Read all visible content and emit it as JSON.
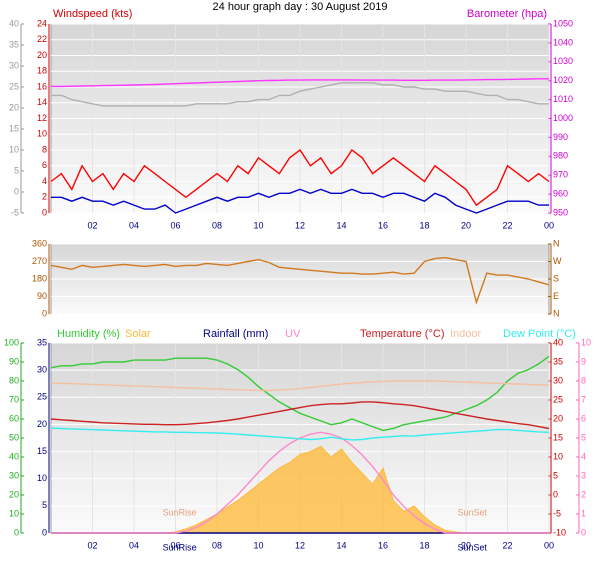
{
  "title": "24 hour graph day : 30 August 2019",
  "chart_data": [
    {
      "type": "line",
      "ylabel": "Windspeed (kts)",
      "y2label": "Barometer (hpa)",
      "grid": true,
      "axis_colors": {
        "y": "#cc0000",
        "y2": "#cc00cc",
        "y3": "#999999"
      },
      "x": [
        0,
        0.5,
        1,
        1.5,
        2,
        2.5,
        3,
        3.5,
        4,
        4.5,
        5,
        5.5,
        6,
        6.5,
        7,
        7.5,
        8,
        8.5,
        9,
        9.5,
        10,
        10.5,
        11,
        11.5,
        12,
        12.5,
        13,
        13.5,
        14,
        14.5,
        15,
        15.5,
        16,
        16.5,
        17,
        17.5,
        18,
        18.5,
        19,
        19.5,
        20,
        20.5,
        21,
        21.5,
        22,
        22.5,
        23,
        23.5,
        24
      ],
      "xlim": [
        0,
        24
      ],
      "xticks": [
        {
          "value": 2,
          "label": "02"
        },
        {
          "value": 4,
          "label": "04"
        },
        {
          "value": 6,
          "label": "06"
        },
        {
          "value": 8,
          "label": "08"
        },
        10,
        12,
        14,
        16,
        18,
        20,
        22,
        {
          "value": 24,
          "label": "00"
        }
      ],
      "ylim": [
        0,
        24
      ],
      "yticks": [
        0,
        2,
        4,
        6,
        8,
        10,
        12,
        14,
        16,
        18,
        20,
        22,
        24
      ],
      "y2lim": [
        950,
        1050
      ],
      "y2ticks": [
        950,
        960,
        970,
        980,
        990,
        1000,
        1010,
        1020,
        1030,
        1040,
        1050
      ],
      "y3lim": [
        -5,
        40
      ],
      "y3ticks": [
        -5,
        0,
        5,
        10,
        15,
        20,
        25,
        30,
        35,
        40
      ],
      "series": [
        {
          "color": "#b0b0b0",
          "axis": "y3",
          "values": [
            23,
            23,
            22,
            21.5,
            21,
            20.5,
            20.5,
            20.5,
            20.5,
            20.5,
            20.5,
            20.5,
            20.5,
            20.5,
            21,
            21,
            21,
            21,
            21.5,
            21.5,
            22,
            22,
            23,
            23,
            24,
            24.5,
            25,
            25.5,
            26,
            26,
            26,
            26,
            25.5,
            25.5,
            25,
            25,
            24.5,
            24.5,
            24,
            24,
            24,
            23.5,
            23,
            23,
            22,
            22,
            21.5,
            21,
            21
          ]
        },
        {
          "name": "Barometer (hpa)",
          "color": "#ff33ff",
          "axis": "y2",
          "values": [
            1017,
            1017,
            1017.1,
            1017.2,
            1017.3,
            1017.4,
            1017.5,
            1017.6,
            1017.7,
            1017.9,
            1018,
            1018.2,
            1018.4,
            1018.6,
            1018.8,
            1019,
            1019.2,
            1019.4,
            1019.6,
            1019.8,
            1020,
            1020.1,
            1020.2,
            1020.3,
            1020.3,
            1020.4,
            1020.4,
            1020.4,
            1020.4,
            1020.4,
            1020.3,
            1020.3,
            1020.3,
            1020.3,
            1020.2,
            1020.2,
            1020.2,
            1020.3,
            1020.3,
            1020.3,
            1020.4,
            1020.5,
            1020.6,
            1020.6,
            1020.7,
            1020.8,
            1020.9,
            1021,
            1021
          ]
        },
        {
          "name": "Windspeed (kts)",
          "color": "#ff0000",
          "values": [
            4,
            5,
            3,
            6,
            4,
            5,
            3,
            5,
            4,
            6,
            5,
            4,
            3,
            2,
            3,
            4,
            5,
            4,
            6,
            5,
            7,
            6,
            5,
            7,
            8,
            6,
            7,
            5,
            6,
            8,
            7,
            5,
            6,
            7,
            6,
            5,
            4,
            6,
            5,
            4,
            3,
            1,
            2,
            3,
            6,
            5,
            4,
            5,
            4
          ]
        },
        {
          "color": "#0000cc",
          "values": [
            2,
            2,
            1.5,
            2,
            1.5,
            1.5,
            1,
            1.5,
            1,
            0.5,
            0.5,
            1,
            0,
            0.5,
            1,
            1.5,
            2,
            1.5,
            2,
            2,
            2.5,
            2,
            2.5,
            2.5,
            3,
            2.5,
            3,
            2.5,
            2.5,
            3,
            2.5,
            2.5,
            2,
            2.5,
            2.5,
            2,
            1.5,
            2.5,
            2,
            1,
            0.5,
            0,
            0.5,
            1,
            1.5,
            1.5,
            1.5,
            1,
            1
          ]
        }
      ]
    },
    {
      "type": "line",
      "grid": true,
      "axis_colors": {
        "y": "#aa5500",
        "y2": "#aa5500"
      },
      "x": [
        0,
        0.5,
        1,
        1.5,
        2,
        2.5,
        3,
        3.5,
        4,
        4.5,
        5,
        5.5,
        6,
        6.5,
        7,
        7.5,
        8,
        8.5,
        9,
        9.5,
        10,
        10.5,
        11,
        11.5,
        12,
        12.5,
        13,
        13.5,
        14,
        14.5,
        15,
        15.5,
        16,
        16.5,
        17,
        17.5,
        18,
        18.5,
        19,
        19.5,
        20,
        20.5,
        21,
        21.5,
        22,
        22.5,
        23,
        23.5,
        24
      ],
      "xlim": [
        0,
        24
      ],
      "ylim": [
        0,
        360
      ],
      "yticks": [
        0,
        90,
        180,
        270,
        360
      ],
      "y2lim": [
        0,
        360
      ],
      "y2ticks": [
        {
          "value": 0,
          "label": "N"
        },
        {
          "value": 90,
          "label": "E"
        },
        {
          "value": 180,
          "label": "S"
        },
        {
          "value": 270,
          "label": "W"
        },
        {
          "value": 360,
          "label": "N"
        }
      ],
      "series": [
        {
          "color": "#d2781e",
          "values": [
            250,
            240,
            230,
            250,
            240,
            245,
            250,
            255,
            250,
            245,
            250,
            255,
            245,
            250,
            250,
            260,
            255,
            250,
            260,
            270,
            280,
            265,
            240,
            235,
            230,
            225,
            220,
            215,
            210,
            210,
            205,
            205,
            210,
            215,
            205,
            210,
            270,
            285,
            290,
            280,
            270,
            60,
            210,
            200,
            200,
            190,
            180,
            165,
            150
          ]
        }
      ]
    },
    {
      "type": "line",
      "grid": true,
      "axis_colors": {
        "y": "#000080",
        "y2": "#cc0000",
        "y3": "#22aa22",
        "y4": "#ff66bb"
      },
      "x": [
        0,
        0.5,
        1,
        1.5,
        2,
        2.5,
        3,
        3.5,
        4,
        4.5,
        5,
        5.5,
        6,
        6.5,
        7,
        7.5,
        8,
        8.5,
        9,
        9.5,
        10,
        10.5,
        11,
        11.5,
        12,
        12.5,
        13,
        13.5,
        14,
        14.5,
        15,
        15.5,
        16,
        16.5,
        17,
        17.5,
        18,
        18.5,
        19,
        19.5,
        20,
        20.5,
        21,
        21.5,
        22,
        22.5,
        23,
        23.5,
        24
      ],
      "xlim": [
        0,
        24
      ],
      "xticks": [
        {
          "value": 2,
          "label": "02"
        },
        {
          "value": 4,
          "label": "04"
        },
        {
          "value": 6,
          "label": "06"
        },
        {
          "value": 8,
          "label": "08"
        },
        10,
        12,
        14,
        16,
        18,
        20,
        22,
        {
          "value": 24,
          "label": "00"
        }
      ],
      "ylim": [
        0,
        35
      ],
      "yticks": [
        0,
        5,
        10,
        15,
        20,
        25,
        30,
        35
      ],
      "y2lim": [
        -10,
        40
      ],
      "y2ticks": [
        -10,
        -5,
        0,
        5,
        10,
        15,
        20,
        25,
        30,
        35,
        40
      ],
      "y3lim": [
        0,
        100
      ],
      "y3ticks": [
        0,
        10,
        20,
        30,
        40,
        50,
        60,
        70,
        80,
        90,
        100
      ],
      "y4lim": [
        0,
        10
      ],
      "y4ticks": [
        0,
        1,
        2,
        3,
        4,
        5,
        6,
        7,
        8,
        9,
        10
      ],
      "annotations": [
        {
          "text": "SunRise",
          "x": 6.2
        },
        {
          "text": "SunSet",
          "x": 20.3
        }
      ],
      "series": [
        {
          "name": "Humidity (%)",
          "color": "#33cc33",
          "axis": "y3",
          "values": [
            87,
            88,
            88,
            89,
            89,
            90,
            90,
            90,
            91,
            91,
            91,
            91,
            92,
            92,
            92,
            92,
            91,
            89,
            86,
            82,
            77,
            73,
            69,
            66,
            63,
            61,
            59,
            57,
            58,
            60,
            58,
            56,
            54,
            55,
            57,
            58,
            59,
            60,
            61,
            63,
            65,
            67,
            70,
            74,
            80,
            84,
            86,
            89,
            93
          ]
        },
        {
          "name": "Solar",
          "color": "#ffb733",
          "fill": true,
          "values": [
            0,
            0,
            0,
            0,
            0,
            0,
            0,
            0,
            0,
            0,
            0,
            0,
            0.2,
            0.8,
            1.5,
            2.5,
            3.5,
            4.8,
            6,
            7.5,
            9,
            10.5,
            12,
            13,
            14.5,
            15,
            16,
            14,
            15.5,
            13,
            11,
            9,
            12,
            6,
            4,
            5,
            3,
            1.5,
            0.5,
            0.2,
            0,
            0,
            0,
            0,
            0,
            0,
            0,
            0,
            0
          ]
        },
        {
          "name": "Rainfall (mm)",
          "color": "#000080",
          "values": [
            0,
            0,
            0,
            0,
            0,
            0,
            0,
            0,
            0,
            0,
            0,
            0,
            0,
            0,
            0,
            0,
            0,
            0,
            0,
            0,
            0,
            0,
            0,
            0,
            0,
            0,
            0,
            0,
            0,
            0,
            0,
            0,
            0,
            0,
            0,
            0,
            0,
            0,
            0,
            0,
            0,
            0,
            0,
            0,
            0,
            0,
            0,
            0,
            0
          ]
        },
        {
          "name": "UV",
          "color": "#ff88cc",
          "axis": "y4",
          "values": [
            0,
            0,
            0,
            0,
            0,
            0,
            0,
            0,
            0,
            0,
            0,
            0,
            0,
            0.1,
            0.3,
            0.6,
            1,
            1.5,
            2,
            2.6,
            3.2,
            3.8,
            4.3,
            4.7,
            5,
            5.2,
            5.3,
            5.2,
            5,
            4.6,
            4.1,
            3.5,
            2.8,
            2,
            1.4,
            0.9,
            0.5,
            0.2,
            0,
            0,
            0,
            0,
            0,
            0,
            0,
            0,
            0,
            0,
            0
          ]
        },
        {
          "name": "Temperature (°C)",
          "color": "#cc2222",
          "axis": "y2",
          "values": [
            20,
            19.8,
            19.6,
            19.4,
            19.2,
            19,
            18.9,
            18.8,
            18.7,
            18.6,
            18.6,
            18.5,
            18.5,
            18.6,
            18.8,
            19,
            19.3,
            19.6,
            20,
            20.5,
            21,
            21.5,
            22,
            22.5,
            23,
            23.5,
            23.8,
            24,
            24,
            24.2,
            24.5,
            24.5,
            24.3,
            24,
            23.8,
            23.5,
            23,
            22.5,
            22,
            21.5,
            21,
            20.5,
            20,
            19.6,
            19.2,
            18.8,
            18.5,
            18,
            17.5
          ]
        },
        {
          "name": "Indoor",
          "color": "#f5bfa0",
          "axis": "y2",
          "values": [
            29.5,
            29.4,
            29.3,
            29.2,
            29.1,
            29,
            28.9,
            28.8,
            28.7,
            28.6,
            28.5,
            28.4,
            28.3,
            28.2,
            28.1,
            28,
            27.9,
            27.8,
            27.7,
            27.6,
            27.5,
            27.5,
            27.6,
            27.8,
            28,
            28.3,
            28.6,
            28.9,
            29.2,
            29.4,
            29.6,
            29.8,
            29.9,
            30,
            30,
            30,
            30,
            30,
            29.9,
            29.8,
            29.7,
            29.6,
            29.5,
            29.4,
            29.3,
            29.2,
            29.1,
            29,
            28.9
          ]
        },
        {
          "name": "Dew Point (°C)",
          "color": "#33eeee",
          "axis": "y2",
          "values": [
            17.6,
            17.5,
            17.4,
            17.3,
            17.2,
            17.1,
            17,
            16.9,
            16.8,
            16.7,
            16.6,
            16.6,
            16.5,
            16.5,
            16.4,
            16.4,
            16.3,
            16.2,
            16,
            15.8,
            15.6,
            15.4,
            15.2,
            15,
            14.8,
            14.6,
            14.8,
            15.2,
            14.8,
            14.5,
            14.6,
            15,
            15.2,
            15.4,
            15.6,
            15.5,
            15.8,
            16,
            16.2,
            16.4,
            16.6,
            16.8,
            17,
            17.2,
            17.2,
            17,
            16.8,
            16.6,
            16.5
          ]
        }
      ]
    }
  ]
}
